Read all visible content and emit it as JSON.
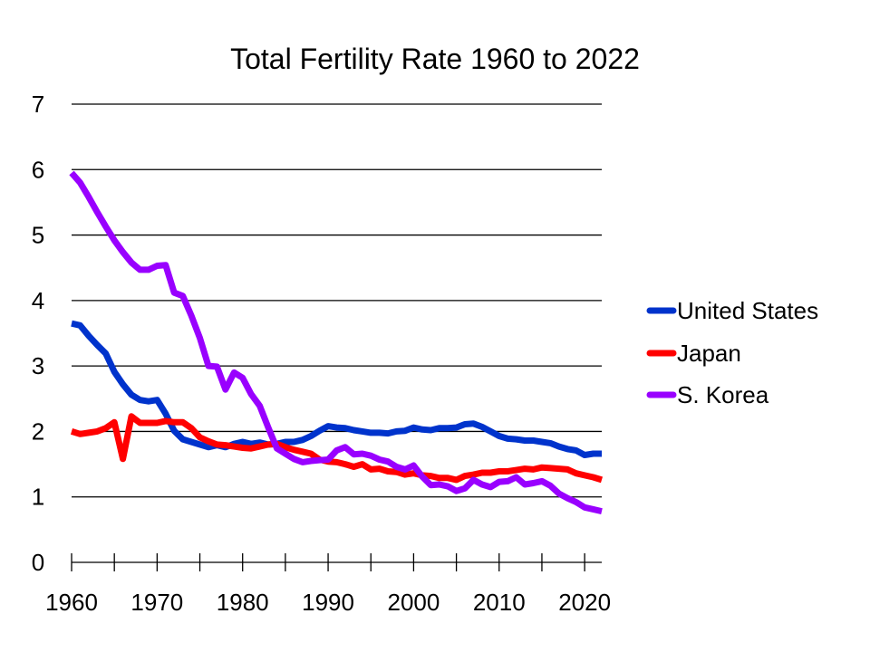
{
  "chart_data": {
    "type": "line",
    "title": "Total Fertility Rate 1960 to 2022",
    "xlabel": "",
    "ylabel": "",
    "xlim": [
      1960,
      2022
    ],
    "ylim": [
      0,
      7
    ],
    "grid": true,
    "legend_position": "right",
    "x_tick_labels": [
      "1960",
      "1970",
      "1980",
      "1990",
      "2000",
      "2010",
      "2020"
    ],
    "x_ticks_minor_step": 5,
    "y_tick_labels": [
      "0",
      "1",
      "2",
      "3",
      "4",
      "5",
      "6",
      "7"
    ],
    "x": [
      1960,
      1961,
      1962,
      1963,
      1964,
      1965,
      1966,
      1967,
      1968,
      1969,
      1970,
      1971,
      1972,
      1973,
      1974,
      1975,
      1976,
      1977,
      1978,
      1979,
      1980,
      1981,
      1982,
      1983,
      1984,
      1985,
      1986,
      1987,
      1988,
      1989,
      1990,
      1991,
      1992,
      1993,
      1994,
      1995,
      1996,
      1997,
      1998,
      1999,
      2000,
      2001,
      2002,
      2003,
      2004,
      2005,
      2006,
      2007,
      2008,
      2009,
      2010,
      2011,
      2012,
      2013,
      2014,
      2015,
      2016,
      2017,
      2018,
      2019,
      2020,
      2021,
      2022
    ],
    "series": [
      {
        "name": "United States",
        "color": "#0033cc",
        "values": [
          3.65,
          3.62,
          3.46,
          3.32,
          3.19,
          2.91,
          2.72,
          2.56,
          2.48,
          2.46,
          2.48,
          2.27,
          2.01,
          1.88,
          1.84,
          1.8,
          1.76,
          1.79,
          1.76,
          1.81,
          1.84,
          1.81,
          1.83,
          1.8,
          1.81,
          1.84,
          1.84,
          1.87,
          1.93,
          2.01,
          2.08,
          2.06,
          2.05,
          2.02,
          2.0,
          1.98,
          1.98,
          1.97,
          2.0,
          2.01,
          2.06,
          2.03,
          2.02,
          2.05,
          2.05,
          2.06,
          2.11,
          2.12,
          2.07,
          2.0,
          1.93,
          1.89,
          1.88,
          1.86,
          1.86,
          1.84,
          1.82,
          1.77,
          1.73,
          1.71,
          1.64,
          1.66,
          1.66
        ]
      },
      {
        "name": "Japan",
        "color": "#ff0000",
        "values": [
          2.0,
          1.96,
          1.98,
          2.0,
          2.05,
          2.14,
          1.58,
          2.23,
          2.13,
          2.13,
          2.13,
          2.16,
          2.14,
          2.14,
          2.05,
          1.91,
          1.85,
          1.8,
          1.79,
          1.77,
          1.75,
          1.74,
          1.77,
          1.8,
          1.81,
          1.76,
          1.72,
          1.69,
          1.66,
          1.57,
          1.54,
          1.53,
          1.5,
          1.46,
          1.5,
          1.42,
          1.43,
          1.39,
          1.38,
          1.34,
          1.36,
          1.33,
          1.32,
          1.29,
          1.29,
          1.26,
          1.32,
          1.34,
          1.37,
          1.37,
          1.39,
          1.39,
          1.41,
          1.43,
          1.42,
          1.45,
          1.44,
          1.43,
          1.42,
          1.36,
          1.33,
          1.3,
          1.26
        ]
      },
      {
        "name": "S. Korea",
        "color": "#9900ff",
        "values": [
          5.95,
          5.8,
          5.58,
          5.35,
          5.13,
          4.92,
          4.74,
          4.58,
          4.47,
          4.47,
          4.53,
          4.54,
          4.12,
          4.07,
          3.77,
          3.43,
          3.0,
          2.99,
          2.64,
          2.9,
          2.82,
          2.57,
          2.39,
          2.06,
          1.74,
          1.66,
          1.58,
          1.53,
          1.55,
          1.56,
          1.57,
          1.71,
          1.76,
          1.65,
          1.66,
          1.63,
          1.57,
          1.54,
          1.46,
          1.42,
          1.48,
          1.31,
          1.18,
          1.19,
          1.16,
          1.09,
          1.13,
          1.26,
          1.19,
          1.15,
          1.23,
          1.24,
          1.3,
          1.19,
          1.21,
          1.24,
          1.17,
          1.05,
          0.98,
          0.92,
          0.84,
          0.81,
          0.78
        ]
      }
    ]
  }
}
